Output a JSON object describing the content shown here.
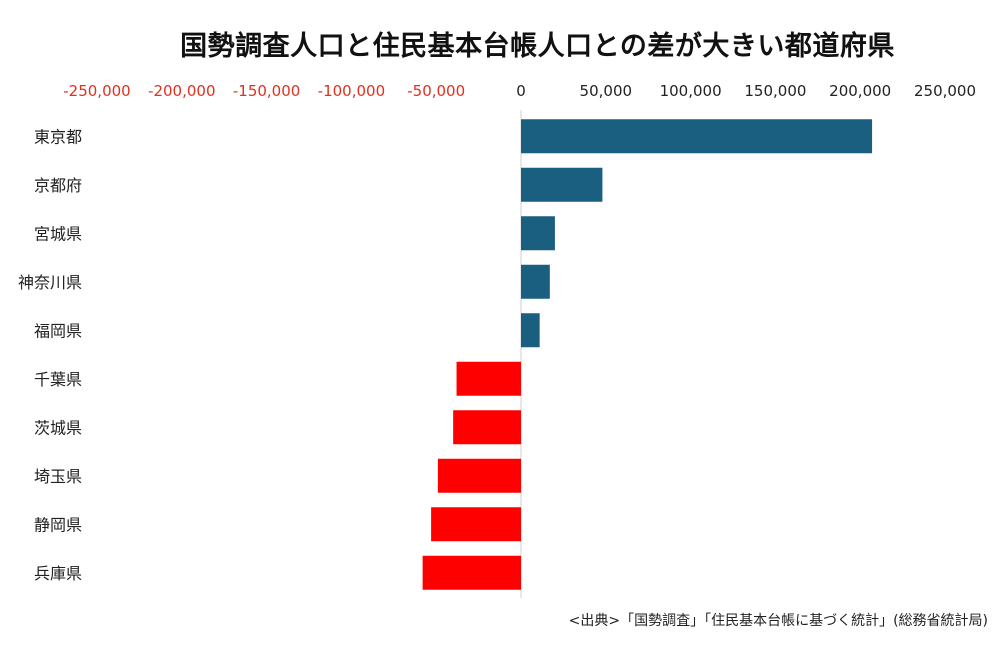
{
  "chart_data": {
    "type": "bar",
    "orientation": "horizontal",
    "title": "国勢調査人口と住民基本台帳人口との差が大きい都道府県",
    "categories": [
      "東京都",
      "京都府",
      "宮城県",
      "神奈川県",
      "福岡県",
      "千葉県",
      "茨城県",
      "埼玉県",
      "静岡県",
      "兵庫県"
    ],
    "values": [
      207000,
      48000,
      20000,
      17000,
      11000,
      -38000,
      -40000,
      -49000,
      -53000,
      -58000
    ],
    "xlim": [
      -250000,
      250000
    ],
    "xticks": [
      -250000,
      -200000,
      -150000,
      -100000,
      -50000,
      0,
      50000,
      100000,
      150000,
      200000,
      250000
    ],
    "xtick_labels": [
      "-250,000",
      "-200,000",
      "-150,000",
      "-100,000",
      "-50,000",
      "0",
      "50,000",
      "100,000",
      "150,000",
      "200,000",
      "250,000"
    ],
    "axis_position": "top",
    "grid": false,
    "legend": "none",
    "colors": {
      "positive": "#1a5f80",
      "negative": "#ff0000",
      "negative_tick_label": "#e03020",
      "positive_tick_label": "#222222",
      "axis_line": "#d0d0d0"
    }
  },
  "source": "<出典>「国勢調査」「住民基本台帳に基づく統計」(総務省統計局)"
}
